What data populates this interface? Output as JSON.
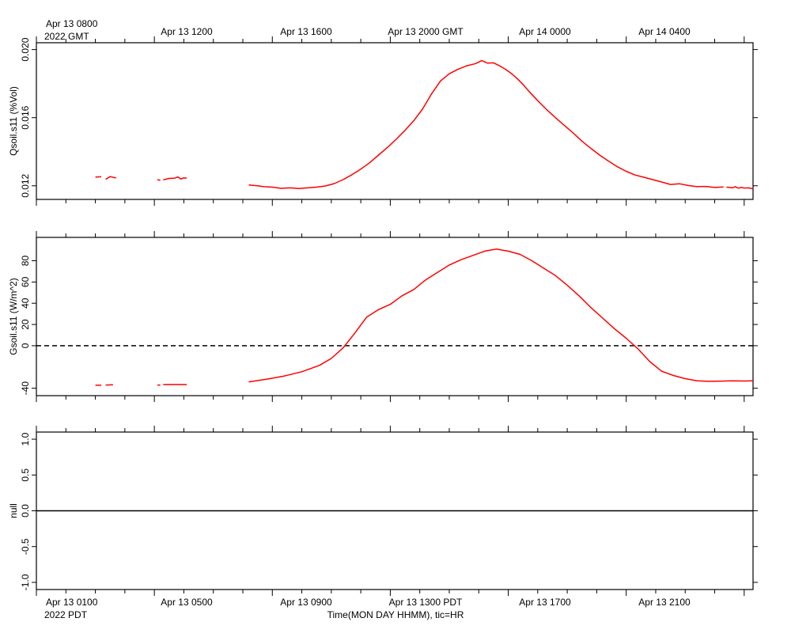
{
  "top_axis": {
    "first_label_line1": "Apr 13 0800",
    "first_label_line2": "2022 GMT",
    "labels": [
      "Apr 13 1200",
      "Apr 13 1600",
      "Apr 13 2000 GMT",
      "Apr 14 0000",
      "Apr 14 0400"
    ]
  },
  "bottom_axis": {
    "first_label_line1": "Apr 13 0100",
    "first_label_line2": "2022 PDT",
    "labels": [
      "Apr 13 0500",
      "Apr 13 0900",
      "Apr 13 1300 PDT",
      "Apr 13 1700",
      "Apr 13 2100"
    ],
    "title": "Time(MON DAY HHMM), tic=HR"
  },
  "colors": {
    "series": "#ff0000",
    "axis": "#000000"
  },
  "chart_data": [
    {
      "type": "line",
      "ylabel": "Qsoil.s11 (%Vol)",
      "x_units": "hours since Apr 13 2022 0100 PDT",
      "xlim": [
        -1,
        23.3
      ],
      "ylim": [
        0.0112,
        0.0204
      ],
      "yticks": [
        0.012,
        0.016,
        0.02
      ],
      "ytick_labels": [
        "0.012",
        "0.016",
        "0.020"
      ],
      "segments": [
        {
          "x": [
            1.0,
            1.2
          ],
          "y": [
            0.01251,
            0.01253
          ]
        },
        {
          "x": [
            1.35,
            1.5,
            1.7
          ],
          "y": [
            0.01238,
            0.01254,
            0.01246
          ]
        },
        {
          "x": [
            3.1,
            3.2
          ],
          "y": [
            0.01236,
            0.01232
          ]
        },
        {
          "x": [
            3.3,
            3.5,
            3.7,
            3.8,
            3.9,
            4.0,
            4.1
          ],
          "y": [
            0.01235,
            0.01243,
            0.01245,
            0.01252,
            0.0124,
            0.01247,
            0.01244
          ]
        },
        {
          "x": [
            6.2,
            6.5,
            6.7,
            7.0,
            7.3,
            7.6,
            7.9,
            8.2,
            8.5,
            8.8,
            9.1,
            9.4,
            9.7,
            10.0,
            10.3,
            10.6,
            10.9,
            11.2,
            11.5,
            11.8,
            12.1,
            12.4,
            12.7,
            13.0,
            13.3,
            13.6,
            13.9,
            14.1,
            14.3,
            14.5,
            14.7,
            14.9,
            15.1,
            15.3,
            15.5,
            15.7,
            16.0,
            16.3,
            16.6,
            16.9,
            17.2,
            17.5,
            17.8,
            18.1,
            18.4,
            18.7,
            19.0,
            19.3,
            19.6,
            19.9,
            20.2,
            20.5,
            20.8,
            21.1,
            21.4,
            21.7,
            22.0,
            22.3
          ],
          "y": [
            0.01205,
            0.012,
            0.01195,
            0.01192,
            0.01185,
            0.01188,
            0.01184,
            0.01188,
            0.01192,
            0.01199,
            0.01213,
            0.01236,
            0.01265,
            0.01298,
            0.01335,
            0.0138,
            0.01425,
            0.01473,
            0.01525,
            0.01583,
            0.01652,
            0.0174,
            0.01815,
            0.01858,
            0.01885,
            0.01905,
            0.01918,
            0.01935,
            0.0192,
            0.01922,
            0.01905,
            0.01885,
            0.0186,
            0.0183,
            0.01795,
            0.01755,
            0.017,
            0.01648,
            0.016,
            0.01555,
            0.0151,
            0.01462,
            0.0142,
            0.0138,
            0.01345,
            0.01312,
            0.01285,
            0.01263,
            0.0125,
            0.01236,
            0.01222,
            0.01208,
            0.01212,
            0.01202,
            0.01195,
            0.01196,
            0.0119,
            0.01193
          ]
        },
        {
          "x": [
            22.4,
            22.6,
            22.7,
            22.8,
            22.9,
            23.0,
            23.15,
            23.3
          ],
          "y": [
            0.01192,
            0.01188,
            0.01195,
            0.01186,
            0.0119,
            0.01187,
            0.01188,
            0.01182
          ]
        }
      ]
    },
    {
      "type": "line",
      "ylabel": "Gsoil.s11 (W/m^2)",
      "x_units": "hours since Apr 13 2022 0100 PDT",
      "xlim": [
        -1,
        23.3
      ],
      "ylim": [
        -47,
        102
      ],
      "yticks": [
        -40,
        0,
        20,
        40,
        60,
        80
      ],
      "ytick_labels": [
        "-40",
        "0",
        "20",
        "40",
        "60",
        "80"
      ],
      "zero_line": true,
      "segments": [
        {
          "x": [
            1.0,
            1.2
          ],
          "y": [
            -37.2,
            -37.2
          ]
        },
        {
          "x": [
            1.35,
            1.6
          ],
          "y": [
            -37.0,
            -36.8
          ]
        },
        {
          "x": [
            3.1,
            3.2
          ],
          "y": [
            -37.0,
            -37.0
          ]
        },
        {
          "x": [
            3.3,
            3.7,
            4.1
          ],
          "y": [
            -36.6,
            -36.5,
            -36.6
          ]
        },
        {
          "x": [
            6.2,
            6.8,
            7.4,
            8.0,
            8.6,
            9.0,
            9.4,
            9.8,
            10.2,
            10.6,
            11.0,
            11.4,
            11.8,
            12.2,
            12.6,
            13.0,
            13.4,
            13.8,
            14.2,
            14.6,
            15.0,
            15.4,
            15.8,
            16.2,
            16.6,
            17.0,
            17.4,
            17.8,
            18.2,
            18.6,
            19.0,
            19.4,
            19.8,
            20.2,
            20.6,
            21.0,
            21.4,
            21.8,
            22.2,
            22.6,
            23.0,
            23.3
          ],
          "y": [
            -34.0,
            -31.5,
            -28.5,
            -24.5,
            -18.5,
            -12.0,
            -2.0,
            12.0,
            27.0,
            34.0,
            39.0,
            47.0,
            53.0,
            62.0,
            69.0,
            76.0,
            81.0,
            85.0,
            89.0,
            91.0,
            89.0,
            86.0,
            80.0,
            73.0,
            66.0,
            57.0,
            47.0,
            36.0,
            26.0,
            16.0,
            7.0,
            -3.0,
            -15.0,
            -24.0,
            -28.0,
            -31.0,
            -33.0,
            -33.5,
            -33.3,
            -33.0,
            -33.2,
            -33.0
          ]
        }
      ]
    },
    {
      "type": "line",
      "ylabel": "null",
      "xlim": [
        -1,
        23.3
      ],
      "ylim": [
        -1.1,
        1.1
      ],
      "yticks": [
        -1.0,
        -0.5,
        0.0,
        0.5,
        1.0
      ],
      "ytick_labels": [
        "-1.0",
        "-0.5",
        "0.0",
        "0.5",
        "1.0"
      ],
      "segments": [
        {
          "x": [
            -1,
            23.3
          ],
          "y": [
            0,
            0
          ]
        }
      ],
      "line_color": "#000000"
    }
  ]
}
